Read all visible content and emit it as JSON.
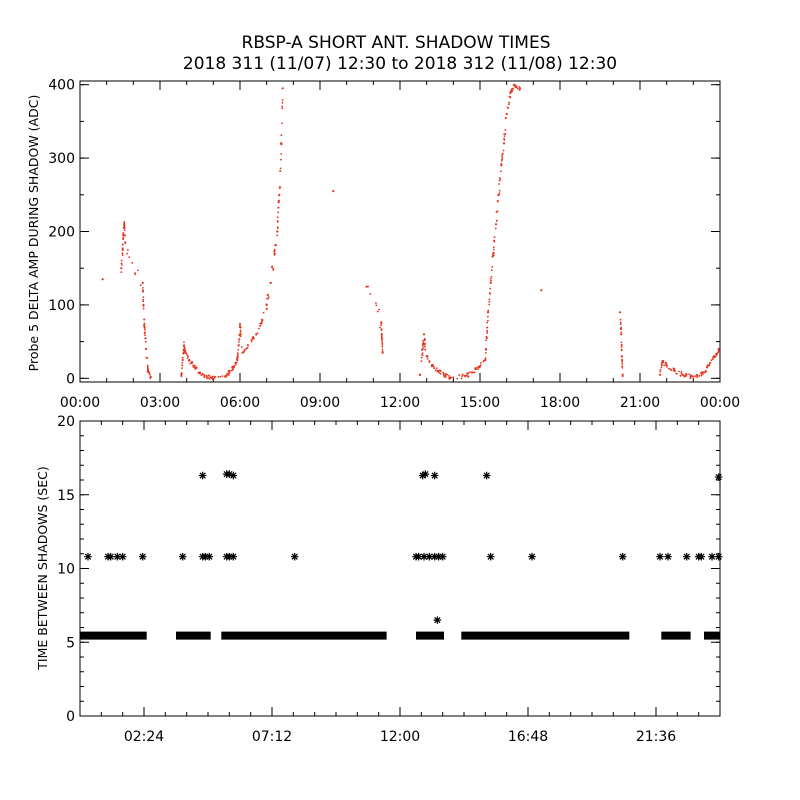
{
  "figure": {
    "title_line1": "RBSP-A SHORT ANT. SHADOW TIMES",
    "title_line2": "2018 311 (11/07) 12:30 to 2018 312 (11/08) 12:30"
  },
  "colors": {
    "top_points": "#e8321e",
    "bottom_points": "#000000",
    "axes": "#000000"
  },
  "chart_data": [
    {
      "type": "scatter",
      "ylabel": "Probe 5 DELTA AMP DURING SHADOW (ADC)",
      "xlabel": "",
      "xlim": [
        0,
        24
      ],
      "ylim": [
        -5,
        405
      ],
      "x_unit": "hours",
      "xticks": [
        {
          "v": 0,
          "label": "00:00"
        },
        {
          "v": 3,
          "label": "03:00"
        },
        {
          "v": 6,
          "label": "06:00"
        },
        {
          "v": 9,
          "label": "09:00"
        },
        {
          "v": 12,
          "label": "12:00"
        },
        {
          "v": 15,
          "label": "15:00"
        },
        {
          "v": 18,
          "label": "18:00"
        },
        {
          "v": 21,
          "label": "21:00"
        },
        {
          "v": 24,
          "label": "00:00"
        }
      ],
      "yticks": [
        0,
        100,
        200,
        300,
        400
      ],
      "series": [
        {
          "color": "#e8321e",
          "points": [
            [
              0.85,
              135
            ],
            [
              1.55,
              150
            ],
            [
              1.6,
              175
            ],
            [
              1.62,
              195
            ],
            [
              1.66,
              210
            ],
            [
              1.7,
              185
            ],
            [
              2.35,
              130
            ],
            [
              2.38,
              100
            ],
            [
              2.42,
              70
            ],
            [
              2.48,
              40
            ],
            [
              2.55,
              10
            ],
            [
              2.65,
              2
            ],
            [
              3.8,
              5
            ],
            [
              3.85,
              25
            ],
            [
              3.9,
              45
            ],
            [
              3.95,
              35
            ],
            [
              4.1,
              25
            ],
            [
              4.3,
              15
            ],
            [
              4.5,
              8
            ],
            [
              4.75,
              3
            ],
            [
              4.95,
              1
            ],
            [
              5.45,
              2
            ],
            [
              5.6,
              8
            ],
            [
              5.75,
              15
            ],
            [
              5.9,
              25
            ],
            [
              5.95,
              45
            ],
            [
              6.0,
              70
            ],
            [
              6.1,
              35
            ],
            [
              6.3,
              45
            ],
            [
              6.5,
              55
            ],
            [
              6.8,
              75
            ],
            [
              7.0,
              100
            ],
            [
              7.15,
              130
            ],
            [
              7.3,
              170
            ],
            [
              7.4,
              200
            ],
            [
              7.45,
              240
            ],
            [
              7.5,
              260
            ],
            [
              7.55,
              320
            ],
            [
              7.6,
              395
            ],
            [
              9.5,
              255
            ],
            [
              10.75,
              125
            ],
            [
              11.3,
              75
            ],
            [
              11.32,
              55
            ],
            [
              11.35,
              35
            ],
            [
              12.75,
              5
            ],
            [
              12.85,
              40
            ],
            [
              12.9,
              60
            ],
            [
              13.0,
              30
            ],
            [
              13.2,
              18
            ],
            [
              13.45,
              10
            ],
            [
              13.7,
              4
            ],
            [
              13.9,
              1
            ],
            [
              14.45,
              3
            ],
            [
              14.7,
              8
            ],
            [
              14.95,
              15
            ],
            [
              15.2,
              25
            ],
            [
              15.25,
              55
            ],
            [
              15.3,
              90
            ],
            [
              15.4,
              130
            ],
            [
              15.5,
              170
            ],
            [
              15.6,
              210
            ],
            [
              15.7,
              250
            ],
            [
              15.8,
              290
            ],
            [
              15.9,
              320
            ],
            [
              16.0,
              360
            ],
            [
              16.15,
              390
            ],
            [
              16.3,
              400
            ],
            [
              16.5,
              395
            ],
            [
              17.3,
              120
            ],
            [
              20.25,
              90
            ],
            [
              20.3,
              60
            ],
            [
              20.32,
              30
            ],
            [
              20.35,
              5
            ],
            [
              21.75,
              5
            ],
            [
              21.85,
              22
            ],
            [
              22.0,
              18
            ],
            [
              22.3,
              10
            ],
            [
              22.6,
              5
            ],
            [
              22.9,
              2
            ],
            [
              23.15,
              2
            ],
            [
              23.4,
              8
            ],
            [
              23.6,
              18
            ],
            [
              23.8,
              30
            ],
            [
              23.95,
              38
            ]
          ]
        }
      ]
    },
    {
      "type": "scatter",
      "ylabel": "TIME BETWEEN SHADOWS (SEC)",
      "xlabel": "",
      "xlim": [
        0,
        24
      ],
      "ylim": [
        0,
        20
      ],
      "x_unit": "hours",
      "xticks": [
        {
          "v": 2.4,
          "label": "02:24"
        },
        {
          "v": 7.2,
          "label": "07:12"
        },
        {
          "v": 12.0,
          "label": "12:00"
        },
        {
          "v": 16.8,
          "label": "16:48"
        },
        {
          "v": 21.6,
          "label": "21:36"
        }
      ],
      "yticks": [
        0,
        5,
        10,
        15,
        20
      ],
      "series": [
        {
          "color": "#000000",
          "marker": "asterisk",
          "baseline_value": 5.45,
          "baseline_segments": [
            [
              0.0,
              2.5
            ],
            [
              3.6,
              4.9
            ],
            [
              5.3,
              11.5
            ],
            [
              12.6,
              13.65
            ],
            [
              14.3,
              20.6
            ],
            [
              21.8,
              22.9
            ],
            [
              23.4,
              24.0
            ]
          ],
          "points": [
            [
              0.3,
              10.8
            ],
            [
              1.05,
              10.8
            ],
            [
              1.15,
              10.8
            ],
            [
              1.4,
              10.8
            ],
            [
              1.6,
              10.8
            ],
            [
              2.35,
              10.8
            ],
            [
              3.85,
              10.8
            ],
            [
              4.6,
              10.8
            ],
            [
              4.7,
              10.8
            ],
            [
              4.85,
              10.8
            ],
            [
              4.6,
              16.3
            ],
            [
              5.5,
              10.8
            ],
            [
              5.6,
              10.8
            ],
            [
              5.75,
              10.8
            ],
            [
              5.5,
              16.4
            ],
            [
              5.6,
              16.4
            ],
            [
              5.75,
              16.3
            ],
            [
              8.05,
              10.8
            ],
            [
              12.6,
              10.8
            ],
            [
              12.7,
              10.8
            ],
            [
              12.9,
              10.8
            ],
            [
              13.1,
              10.8
            ],
            [
              13.3,
              10.8
            ],
            [
              13.45,
              10.8
            ],
            [
              13.6,
              10.8
            ],
            [
              12.85,
              16.3
            ],
            [
              12.95,
              16.4
            ],
            [
              13.3,
              16.3
            ],
            [
              13.4,
              6.5
            ],
            [
              15.25,
              16.3
            ],
            [
              15.4,
              10.8
            ],
            [
              16.95,
              10.8
            ],
            [
              20.35,
              10.8
            ],
            [
              21.75,
              10.8
            ],
            [
              22.05,
              10.8
            ],
            [
              22.75,
              10.8
            ],
            [
              23.2,
              10.8
            ],
            [
              23.3,
              10.8
            ],
            [
              23.7,
              10.8
            ],
            [
              23.95,
              10.8
            ],
            [
              23.95,
              16.2
            ]
          ]
        }
      ]
    }
  ]
}
